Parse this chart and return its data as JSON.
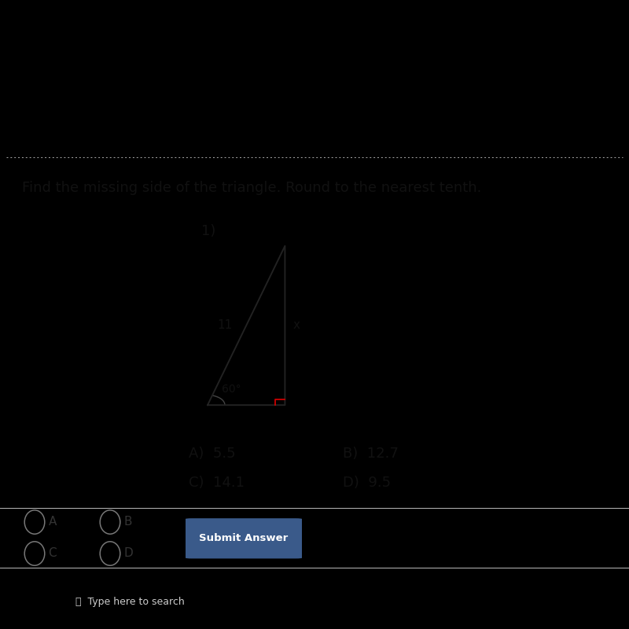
{
  "bg_black": "#000000",
  "bg_light_gray": "#c8c5c0",
  "bg_white_area": "#e8e6e3",
  "bg_bottom_panel": "#d8d5d0",
  "title": "Find the missing side of the triangle. Round to the nearest tenth.",
  "problem_number": "1)",
  "triangle": {
    "left_label": "11",
    "right_label": "x",
    "angle_label": "60°",
    "right_angle_color": "#cc0000",
    "line_color": "#222222"
  },
  "answers": {
    "A": "5.5",
    "B": "12.7",
    "C": "14.1",
    "D": "9.5"
  },
  "bottom_section": {
    "background": "#d0cdc8",
    "button_text": "Submit Answer",
    "button_color": "#3a5a8a",
    "button_text_color": "#ffffff"
  },
  "title_fontsize": 13,
  "answer_fontsize": 13,
  "label_fontsize": 11,
  "text_color": "#111111"
}
